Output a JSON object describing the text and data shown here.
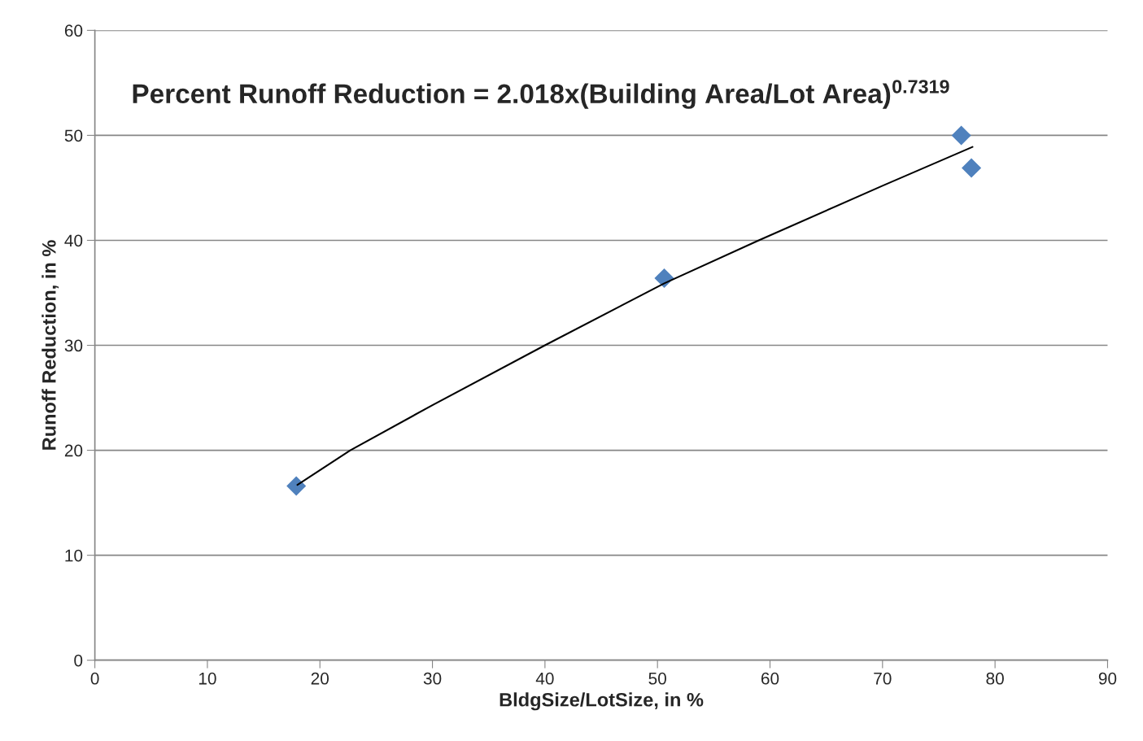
{
  "chart_data": {
    "type": "scatter",
    "xlabel": "BldgSize/LotSize, in %",
    "ylabel": "Runoff Reduction, in %",
    "xlim": [
      0,
      90
    ],
    "xticks": [
      0,
      10,
      20,
      30,
      40,
      50,
      60,
      70,
      80,
      90
    ],
    "ylim": [
      0,
      60
    ],
    "yticks": [
      0,
      10,
      20,
      30,
      40,
      50,
      60
    ],
    "grid": "y",
    "legend": false,
    "series": [
      {
        "color": "#4f81bd",
        "marker": "diamond",
        "x": [
          17.9,
          50.6,
          77.0,
          77.9
        ],
        "values": [
          16.6,
          36.4,
          50.0,
          46.9
        ]
      },
      {
        "type": "line",
        "color": "#000000",
        "marker": "none",
        "line_style": "solid",
        "x": [
          18,
          22.7,
          30,
          40,
          50.6,
          59,
          70,
          78
        ],
        "values": [
          16.7,
          20,
          24.3,
          30,
          35.9,
          40,
          45.2,
          48.9
        ]
      }
    ],
    "annotations": [
      "Percent Runoff Reduction = 2.018x(Building Area/Lot Area)$^{0.7319}$"
    ]
  }
}
